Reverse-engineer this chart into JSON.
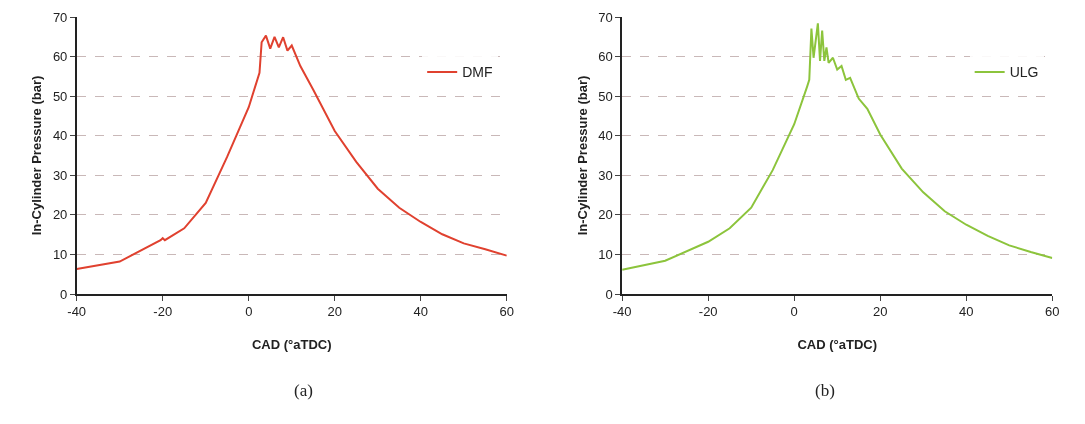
{
  "chart_data": [
    {
      "type": "line",
      "xlabel": "CAD (°aTDC)",
      "ylabel": "In-Cylinder Pressure (bar)",
      "annotations": [
        "(a)"
      ],
      "xlim": [
        -40,
        60
      ],
      "xticks": [
        -40,
        -20,
        0,
        20,
        40,
        60
      ],
      "ylim": [
        0,
        70
      ],
      "yticks": [
        0,
        10,
        20,
        30,
        40,
        50,
        60,
        70
      ],
      "grid": "y",
      "legend": "top right",
      "marker": "none",
      "line_style": "solid",
      "series": [
        {
          "name": "DMF",
          "color": "#e0412f",
          "x": [
            -40,
            -30,
            -20.5,
            -20,
            -19.5,
            -15,
            -10,
            -5,
            0,
            2.5,
            3,
            4,
            5,
            6,
            7,
            8,
            9,
            10,
            12,
            15,
            20,
            25,
            30,
            35,
            40,
            45,
            50,
            55,
            60
          ],
          "values": [
            6.3,
            8.2,
            13.6,
            14.1,
            13.6,
            16.6,
            23,
            34.7,
            47.2,
            55.9,
            63.6,
            65.3,
            62,
            65,
            62.3,
            64.9,
            61.5,
            62.8,
            57.6,
            51.6,
            41.2,
            33.4,
            26.6,
            21.8,
            18.2,
            15.1,
            12.8,
            11.3,
            9.7
          ]
        }
      ]
    },
    {
      "type": "line",
      "xlabel": "CAD (°aTDC)",
      "ylabel": "In-Cylinder Pressure (bar)",
      "annotations": [
        "(b)"
      ],
      "xlim": [
        -40,
        60
      ],
      "xticks": [
        -40,
        -20,
        0,
        20,
        40,
        60
      ],
      "ylim": [
        0,
        70
      ],
      "yticks": [
        0,
        10,
        20,
        30,
        40,
        50,
        60,
        70
      ],
      "grid": "y",
      "legend": "top right",
      "marker": "none",
      "line_style": "solid",
      "series": [
        {
          "name": "ULG",
          "color": "#8cc43c",
          "x": [
            -40,
            -30,
            -20,
            -15,
            -10,
            -5,
            0,
            3,
            3.5,
            4,
            4.5,
            5.5,
            6,
            6.5,
            7,
            7.5,
            8,
            9,
            10,
            11,
            12,
            13,
            15,
            17,
            20,
            25,
            30,
            35,
            40,
            45,
            50,
            55,
            60
          ],
          "values": [
            6.1,
            8.4,
            13.2,
            16.6,
            21.8,
            31.3,
            42.9,
            52.4,
            54.1,
            67.1,
            59.7,
            68.4,
            58.9,
            66.6,
            58.9,
            62.3,
            58.4,
            59.7,
            56.7,
            57.6,
            54.1,
            54.6,
            49.4,
            46.8,
            40.3,
            31.7,
            25.7,
            20.9,
            17.5,
            14.7,
            12.3,
            10.6,
            9.1
          ]
        }
      ]
    }
  ]
}
